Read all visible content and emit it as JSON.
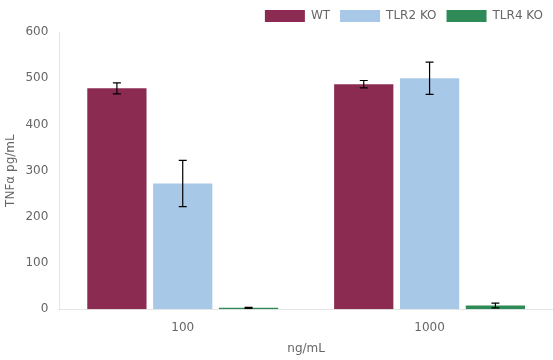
{
  "chart_data": {
    "type": "bar",
    "xlabel": "ng/mL",
    "ylabel": "TNFα pg/mL",
    "categories": [
      "100",
      "1000"
    ],
    "series": [
      {
        "name": "WT",
        "color": "#8B2B52",
        "values": [
          478,
          487
        ],
        "errors": [
          12,
          8
        ]
      },
      {
        "name": "TLR2 KO",
        "color": "#A8C8E8",
        "values": [
          272,
          500
        ],
        "errors": [
          50,
          35
        ]
      },
      {
        "name": "TLR4 KO",
        "color": "#2E8B57",
        "values": [
          3,
          8
        ],
        "errors": [
          1,
          5
        ]
      }
    ],
    "ylim": [
      0,
      600
    ],
    "yticks": [
      0,
      100,
      200,
      300,
      400,
      500,
      600
    ],
    "grid": false,
    "legend": "upper right"
  }
}
